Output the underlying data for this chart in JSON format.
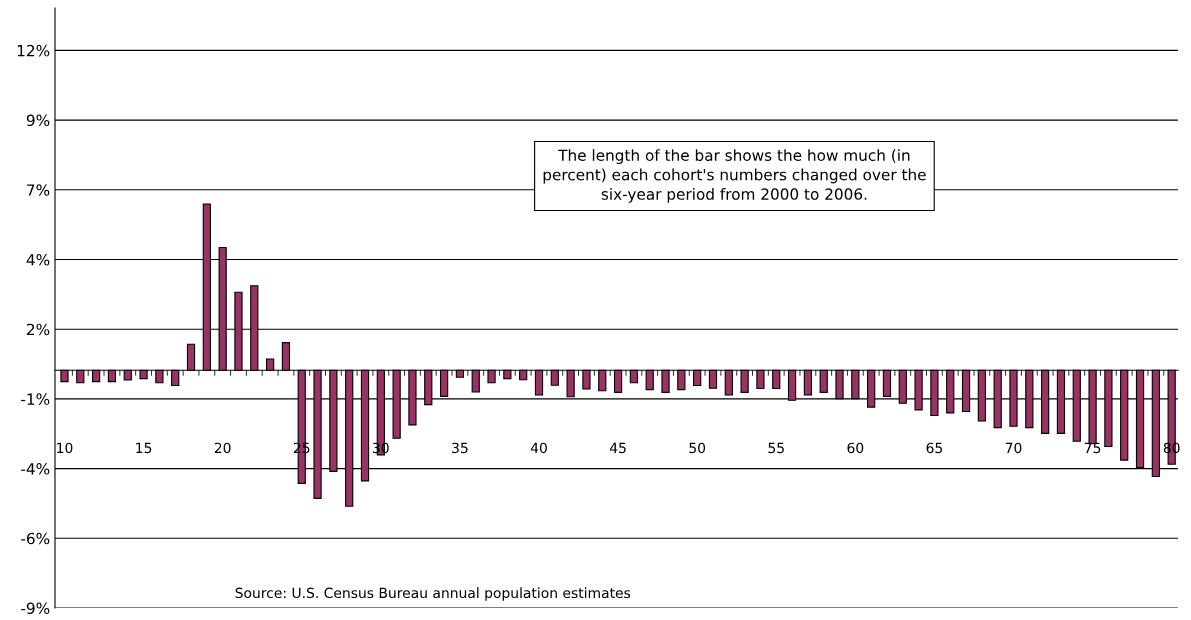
{
  "chart_data": {
    "type": "bar",
    "categories": [
      "10",
      null,
      null,
      null,
      null,
      "15",
      null,
      null,
      null,
      null,
      "20",
      null,
      null,
      null,
      null,
      "25",
      null,
      null,
      null,
      null,
      "30",
      null,
      null,
      null,
      null,
      "35",
      null,
      null,
      null,
      null,
      "40",
      null,
      null,
      null,
      null,
      "45",
      null,
      null,
      null,
      null,
      "50",
      null,
      null,
      null,
      null,
      "55",
      null,
      null,
      null,
      null,
      "60",
      null,
      null,
      null,
      null,
      "65",
      null,
      null,
      null,
      null,
      "70",
      null,
      null,
      null,
      null,
      "75",
      null,
      null,
      null,
      null,
      "80"
    ],
    "values": [
      -0.42,
      -0.46,
      -0.42,
      -0.42,
      -0.36,
      -0.31,
      -0.46,
      -0.56,
      0.95,
      6.08,
      4.49,
      2.85,
      3.09,
      0.41,
      1.01,
      -4.14,
      -4.69,
      -3.7,
      -4.98,
      -4.05,
      -3.1,
      -2.49,
      -2.0,
      -1.26,
      -0.96,
      -0.26,
      -0.8,
      -0.46,
      -0.31,
      -0.35,
      -0.91,
      -0.55,
      -0.97,
      -0.69,
      -0.75,
      -0.81,
      -0.46,
      -0.71,
      -0.81,
      -0.71,
      -0.56,
      -0.66,
      -0.91,
      -0.81,
      -0.67,
      -0.67,
      -1.1,
      -0.91,
      -0.81,
      -1.04,
      -1.04,
      -1.35,
      -0.96,
      -1.21,
      -1.45,
      -1.66,
      -1.56,
      -1.51,
      -1.86,
      -2.1,
      -2.05,
      -2.1,
      -2.31,
      -2.31,
      -2.6,
      -2.69,
      -2.79,
      -3.29,
      -3.56,
      -3.89,
      -3.44
    ],
    "color": "#993366",
    "ylim": [
      -8.7,
      13.25
    ],
    "yticks": [
      {
        "value": -8.7,
        "label": "-9%"
      },
      {
        "value": -6.15,
        "label": "-6%"
      },
      {
        "value": -3.6,
        "label": "-4%"
      },
      {
        "value": -1.05,
        "label": "-1%"
      },
      {
        "value": 1.5,
        "label": "2%"
      },
      {
        "value": 4.05,
        "label": "4%"
      },
      {
        "value": 6.6,
        "label": "7%"
      },
      {
        "value": 9.15,
        "label": "9%"
      },
      {
        "value": 11.7,
        "label": "12%"
      }
    ],
    "grid": "y",
    "annotations": [
      "The length of the bar shows the how much (in\npercent) each cohort's numbers changed over the\nsix-year period from 2000 to 2006.",
      "Source: U.S. Census Bureau annual population estimates"
    ]
  }
}
